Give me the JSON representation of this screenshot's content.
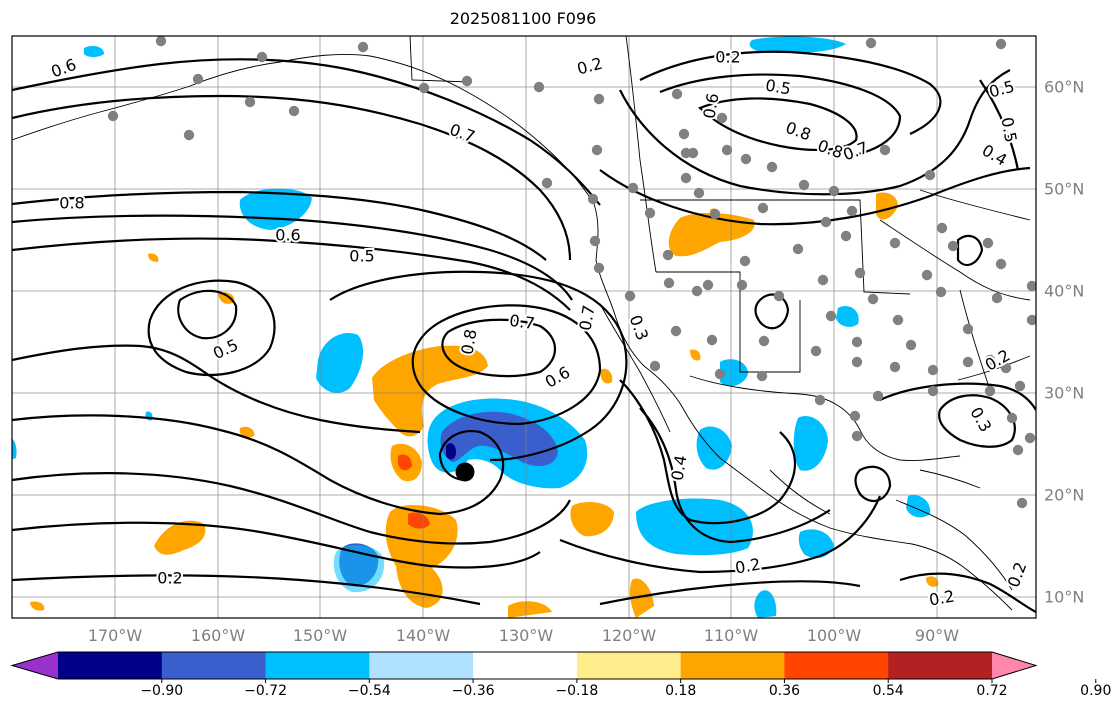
{
  "title": "2025081100 F096",
  "map": {
    "background": "#ffffff",
    "contour_color": "#000000",
    "grid_color": "#808080",
    "longitude_labels": [
      "170°W",
      "160°W",
      "150°W",
      "140°W",
      "130°W",
      "120°W",
      "110°W",
      "100°W",
      "90°W"
    ],
    "latitude_labels": [
      "60°N",
      "50°N",
      "40°N",
      "30°N",
      "20°N",
      "10°N"
    ],
    "contour_labels": [
      "0.6",
      "0.8",
      "0.6",
      "0.5",
      "0.5",
      "0.7",
      "0.8",
      "0.6",
      "0.7",
      "0.7",
      "0.3",
      "0.4",
      "0.2",
      "0.2",
      "0.2",
      "0.2",
      "0.5",
      "0.6",
      "0.8",
      "0.8",
      "0.7",
      "0.5",
      "0.4",
      "0.2",
      "0.3",
      "0.2",
      "0.2",
      "0.5"
    ],
    "storm_marker": "filled-circle"
  },
  "colorbar": {
    "tick_labels": [
      "−0.90",
      "−0.72",
      "−0.54",
      "−0.36",
      "−0.18",
      "0.18",
      "0.36",
      "0.54",
      "0.72",
      "0.90"
    ],
    "colors": [
      "#9932cc",
      "#00008b",
      "#3a5fcd",
      "#00bfff",
      "#b0e2ff",
      "#ffffff",
      "#ffec8b",
      "#ffa500",
      "#ff4500",
      "#b22222",
      "#ff88aa"
    ]
  }
}
